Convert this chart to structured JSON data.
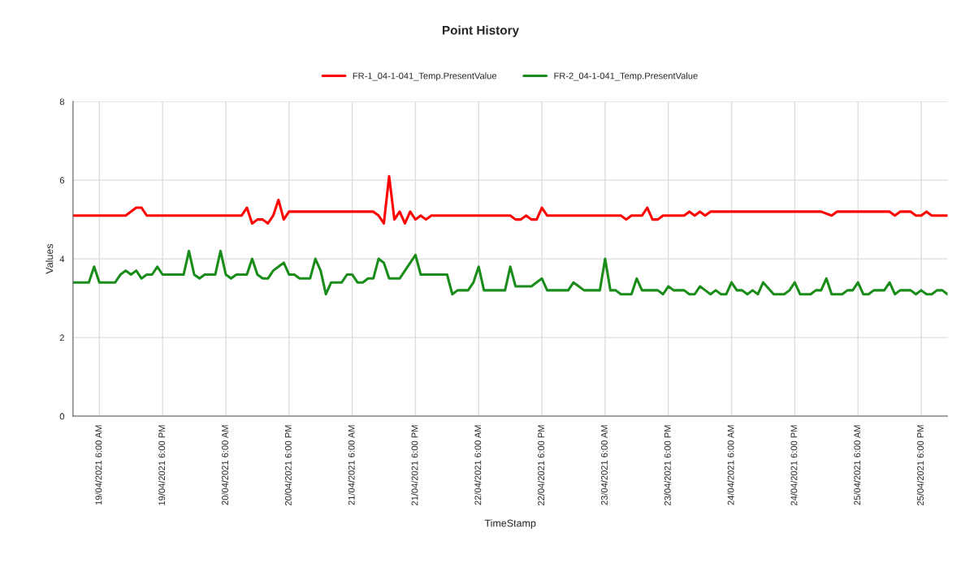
{
  "chart_data": {
    "type": "line",
    "title": "Point History",
    "xlabel": "TimeStamp",
    "ylabel": "Values",
    "xlim": [
      "2021-04-19T01:00",
      "2021-04-25T23:00"
    ],
    "ylim": [
      0,
      8
    ],
    "yticks": [
      0,
      2,
      4,
      6,
      8
    ],
    "xticks": [
      {
        "value": "2021-04-19T06:00",
        "label": "19/04/2021 6:00 AM"
      },
      {
        "value": "2021-04-19T18:00",
        "label": "19/04/2021 6:00 PM"
      },
      {
        "value": "2021-04-20T06:00",
        "label": "20/04/2021 6:00 AM"
      },
      {
        "value": "2021-04-20T18:00",
        "label": "20/04/2021 6:00 PM"
      },
      {
        "value": "2021-04-21T06:00",
        "label": "21/04/2021 6:00 AM"
      },
      {
        "value": "2021-04-21T18:00",
        "label": "21/04/2021 6:00 PM"
      },
      {
        "value": "2021-04-22T06:00",
        "label": "22/04/2021 6:00 AM"
      },
      {
        "value": "2021-04-22T18:00",
        "label": "22/04/2021 6:00 PM"
      },
      {
        "value": "2021-04-23T06:00",
        "label": "23/04/2021 6:00 AM"
      },
      {
        "value": "2021-04-23T18:00",
        "label": "23/04/2021 6:00 PM"
      },
      {
        "value": "2021-04-24T06:00",
        "label": "24/04/2021 6:00 AM"
      },
      {
        "value": "2021-04-24T18:00",
        "label": "24/04/2021 6:00 PM"
      },
      {
        "value": "2021-04-25T06:00",
        "label": "25/04/2021 6:00 AM"
      },
      {
        "value": "2021-04-25T18:00",
        "label": "25/04/2021 6:00 PM"
      }
    ],
    "grid": true,
    "legend": "top",
    "marker": "none",
    "line_style": "solid",
    "series": [
      {
        "name": "FR-1_04-1-041_Temp.PresentValue",
        "color": "#ff0000",
        "x": [
          "2021-04-19T01:00",
          "2021-04-19T11:00",
          "2021-04-19T13:00",
          "2021-04-19T14:00",
          "2021-04-19T15:00",
          "2021-04-20T09:00",
          "2021-04-20T10:00",
          "2021-04-20T11:00",
          "2021-04-20T12:00",
          "2021-04-20T13:00",
          "2021-04-20T14:00",
          "2021-04-20T15:00",
          "2021-04-20T16:00",
          "2021-04-20T17:00",
          "2021-04-20T18:00",
          "2021-04-21T10:00",
          "2021-04-21T11:00",
          "2021-04-21T12:00",
          "2021-04-21T13:00",
          "2021-04-21T14:00",
          "2021-04-21T15:00",
          "2021-04-21T16:00",
          "2021-04-21T17:00",
          "2021-04-21T18:00",
          "2021-04-21T19:00",
          "2021-04-21T20:00",
          "2021-04-21T21:00",
          "2021-04-22T12:00",
          "2021-04-22T13:00",
          "2021-04-22T14:00",
          "2021-04-22T15:00",
          "2021-04-22T16:00",
          "2021-04-22T17:00",
          "2021-04-22T18:00",
          "2021-04-22T19:00",
          "2021-04-23T09:00",
          "2021-04-23T10:00",
          "2021-04-23T11:00",
          "2021-04-23T13:00",
          "2021-04-23T14:00",
          "2021-04-23T15:00",
          "2021-04-23T16:00",
          "2021-04-23T17:00",
          "2021-04-23T21:00",
          "2021-04-23T22:00",
          "2021-04-23T23:00",
          "2021-04-24T00:00",
          "2021-04-24T01:00",
          "2021-04-24T02:00",
          "2021-04-24T23:00",
          "2021-04-25T01:00",
          "2021-04-25T02:00",
          "2021-04-25T12:00",
          "2021-04-25T13:00",
          "2021-04-25T14:00",
          "2021-04-25T16:00",
          "2021-04-25T17:00",
          "2021-04-25T18:00",
          "2021-04-25T19:00",
          "2021-04-25T20:00",
          "2021-04-25T23:00"
        ],
        "values": [
          5.1,
          5.1,
          5.3,
          5.3,
          5.1,
          5.1,
          5.3,
          4.9,
          5.0,
          5.0,
          4.9,
          5.1,
          5.5,
          5.0,
          5.2,
          5.2,
          5.1,
          4.9,
          6.1,
          5.0,
          5.2,
          4.9,
          5.2,
          5.0,
          5.1,
          5.0,
          5.1,
          5.1,
          5.0,
          5.0,
          5.1,
          5.0,
          5.0,
          5.3,
          5.1,
          5.1,
          5.0,
          5.1,
          5.1,
          5.3,
          5.0,
          5.0,
          5.1,
          5.1,
          5.2,
          5.1,
          5.2,
          5.1,
          5.2,
          5.2,
          5.1,
          5.2,
          5.2,
          5.1,
          5.2,
          5.2,
          5.1,
          5.1,
          5.2,
          5.1,
          5.1
        ]
      },
      {
        "name": "FR-2_04-1-041_Temp.PresentValue",
        "color": "#1a8c1a",
        "x": [
          "2021-04-19T01:00",
          "2021-04-19T04:00",
          "2021-04-19T05:00",
          "2021-04-19T06:00",
          "2021-04-19T09:00",
          "2021-04-19T10:00",
          "2021-04-19T11:00",
          "2021-04-19T12:00",
          "2021-04-19T13:00",
          "2021-04-19T14:00",
          "2021-04-19T15:00",
          "2021-04-19T16:00",
          "2021-04-19T17:00",
          "2021-04-19T18:00",
          "2021-04-19T22:00",
          "2021-04-19T23:00",
          "2021-04-20T00:00",
          "2021-04-20T01:00",
          "2021-04-20T02:00",
          "2021-04-20T04:00",
          "2021-04-20T05:00",
          "2021-04-20T06:00",
          "2021-04-20T07:00",
          "2021-04-20T08:00",
          "2021-04-20T10:00",
          "2021-04-20T11:00",
          "2021-04-20T12:00",
          "2021-04-20T13:00",
          "2021-04-20T14:00",
          "2021-04-20T15:00",
          "2021-04-20T16:00",
          "2021-04-20T17:00",
          "2021-04-20T18:00",
          "2021-04-20T19:00",
          "2021-04-20T20:00",
          "2021-04-20T22:00",
          "2021-04-20T23:00",
          "2021-04-21T00:00",
          "2021-04-21T01:00",
          "2021-04-21T02:00",
          "2021-04-21T04:00",
          "2021-04-21T05:00",
          "2021-04-21T06:00",
          "2021-04-21T07:00",
          "2021-04-21T08:00",
          "2021-04-21T09:00",
          "2021-04-21T10:00",
          "2021-04-21T11:00",
          "2021-04-21T12:00",
          "2021-04-21T13:00",
          "2021-04-21T15:00",
          "2021-04-21T18:00",
          "2021-04-21T19:00",
          "2021-04-22T00:00",
          "2021-04-22T01:00",
          "2021-04-22T02:00",
          "2021-04-22T04:00",
          "2021-04-22T05:00",
          "2021-04-22T06:00",
          "2021-04-22T07:00",
          "2021-04-22T11:00",
          "2021-04-22T12:00",
          "2021-04-22T13:00",
          "2021-04-22T16:00",
          "2021-04-22T18:00",
          "2021-04-22T19:00",
          "2021-04-22T23:00",
          "2021-04-23T00:00",
          "2021-04-23T01:00",
          "2021-04-23T02:00",
          "2021-04-23T05:00",
          "2021-04-23T06:00",
          "2021-04-23T07:00",
          "2021-04-23T08:00",
          "2021-04-23T09:00",
          "2021-04-23T11:00",
          "2021-04-23T12:00",
          "2021-04-23T13:00",
          "2021-04-23T16:00",
          "2021-04-23T17:00",
          "2021-04-23T18:00",
          "2021-04-23T19:00",
          "2021-04-23T21:00",
          "2021-04-23T22:00",
          "2021-04-23T23:00",
          "2021-04-24T00:00",
          "2021-04-24T01:00",
          "2021-04-24T02:00",
          "2021-04-24T03:00",
          "2021-04-24T04:00",
          "2021-04-24T05:00",
          "2021-04-24T06:00",
          "2021-04-24T07:00",
          "2021-04-24T08:00",
          "2021-04-24T09:00",
          "2021-04-24T10:00",
          "2021-04-24T11:00",
          "2021-04-24T12:00",
          "2021-04-24T14:00",
          "2021-04-24T16:00",
          "2021-04-24T17:00",
          "2021-04-24T18:00",
          "2021-04-24T19:00",
          "2021-04-24T21:00",
          "2021-04-24T22:00",
          "2021-04-24T23:00",
          "2021-04-25T00:00",
          "2021-04-25T01:00",
          "2021-04-25T03:00",
          "2021-04-25T04:00",
          "2021-04-25T05:00",
          "2021-04-25T06:00",
          "2021-04-25T07:00",
          "2021-04-25T08:00",
          "2021-04-25T09:00",
          "2021-04-25T11:00",
          "2021-04-25T12:00",
          "2021-04-25T13:00",
          "2021-04-25T14:00",
          "2021-04-25T16:00",
          "2021-04-25T17:00",
          "2021-04-25T18:00",
          "2021-04-25T19:00",
          "2021-04-25T20:00",
          "2021-04-25T21:00",
          "2021-04-25T22:00",
          "2021-04-25T23:00"
        ],
        "values": [
          3.4,
          3.4,
          3.8,
          3.4,
          3.4,
          3.6,
          3.7,
          3.6,
          3.7,
          3.5,
          3.6,
          3.6,
          3.8,
          3.6,
          3.6,
          4.2,
          3.6,
          3.5,
          3.6,
          3.6,
          4.2,
          3.6,
          3.5,
          3.6,
          3.6,
          4.0,
          3.6,
          3.5,
          3.5,
          3.7,
          3.8,
          3.9,
          3.6,
          3.6,
          3.5,
          3.5,
          4.0,
          3.7,
          3.1,
          3.4,
          3.4,
          3.6,
          3.6,
          3.4,
          3.4,
          3.5,
          3.5,
          4.0,
          3.9,
          3.5,
          3.5,
          4.1,
          3.6,
          3.6,
          3.1,
          3.2,
          3.2,
          3.4,
          3.8,
          3.2,
          3.2,
          3.8,
          3.3,
          3.3,
          3.5,
          3.2,
          3.2,
          3.4,
          3.3,
          3.2,
          3.2,
          4.0,
          3.2,
          3.2,
          3.1,
          3.1,
          3.5,
          3.2,
          3.2,
          3.1,
          3.3,
          3.2,
          3.2,
          3.1,
          3.1,
          3.3,
          3.2,
          3.1,
          3.2,
          3.1,
          3.1,
          3.4,
          3.2,
          3.2,
          3.1,
          3.2,
          3.1,
          3.4,
          3.1,
          3.1,
          3.2,
          3.4,
          3.1,
          3.1,
          3.2,
          3.2,
          3.5,
          3.1,
          3.1,
          3.2,
          3.2,
          3.4,
          3.1,
          3.1,
          3.2,
          3.2,
          3.4,
          3.1,
          3.2,
          3.2,
          3.1,
          3.2,
          3.1,
          3.1,
          3.2,
          3.2,
          3.1
        ]
      }
    ]
  }
}
